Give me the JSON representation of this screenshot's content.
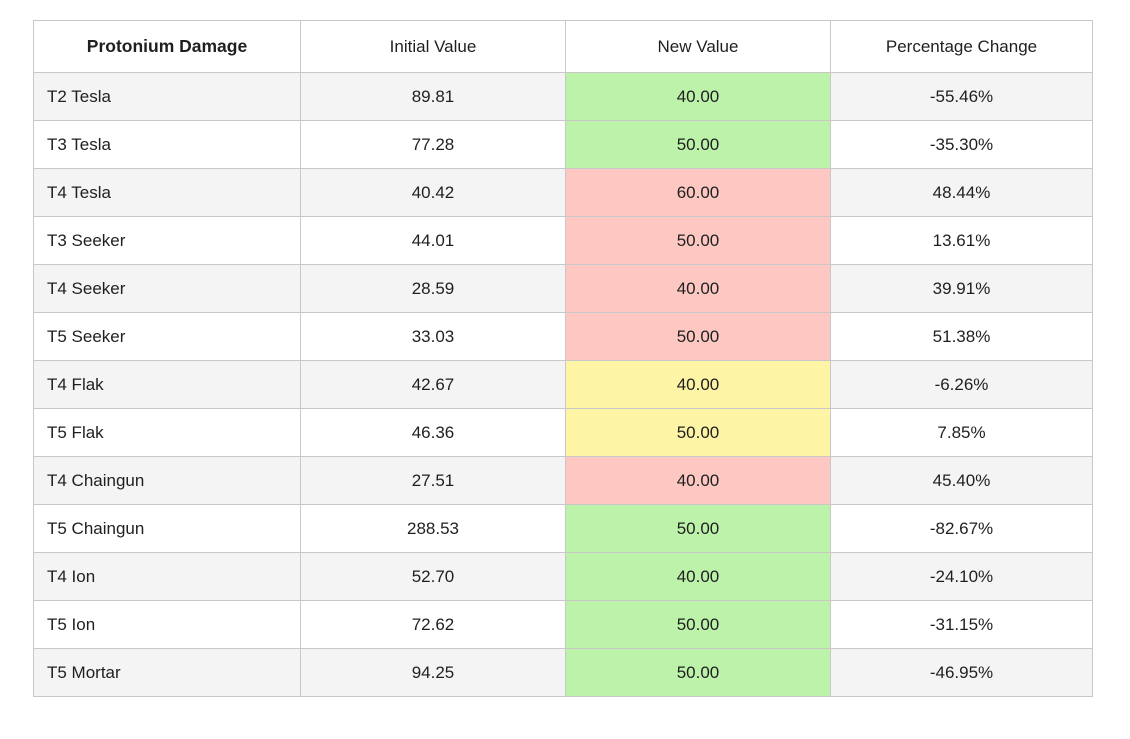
{
  "chart_data": {
    "type": "table",
    "title": "Protonium Damage",
    "columns": [
      "Protonium Damage",
      "Initial Value",
      "New Value",
      "Percentage Change"
    ],
    "rows": [
      {
        "label": "T2 Tesla",
        "initial": "89.81",
        "new_value": "40.00",
        "highlight": "green",
        "change": "-55.46%"
      },
      {
        "label": "T3 Tesla",
        "initial": "77.28",
        "new_value": "50.00",
        "highlight": "green",
        "change": "-35.30%"
      },
      {
        "label": "T4 Tesla",
        "initial": "40.42",
        "new_value": "60.00",
        "highlight": "red",
        "change": "48.44%"
      },
      {
        "label": "T3 Seeker",
        "initial": "44.01",
        "new_value": "50.00",
        "highlight": "red",
        "change": "13.61%"
      },
      {
        "label": "T4 Seeker",
        "initial": "28.59",
        "new_value": "40.00",
        "highlight": "red",
        "change": "39.91%"
      },
      {
        "label": "T5 Seeker",
        "initial": "33.03",
        "new_value": "50.00",
        "highlight": "red",
        "change": "51.38%"
      },
      {
        "label": "T4 Flak",
        "initial": "42.67",
        "new_value": "40.00",
        "highlight": "yellow",
        "change": "-6.26%"
      },
      {
        "label": "T5 Flak",
        "initial": "46.36",
        "new_value": "50.00",
        "highlight": "yellow",
        "change": "7.85%"
      },
      {
        "label": "T4 Chaingun",
        "initial": "27.51",
        "new_value": "40.00",
        "highlight": "red",
        "change": "45.40%"
      },
      {
        "label": "T5 Chaingun",
        "initial": "288.53",
        "new_value": "50.00",
        "highlight": "green",
        "change": "-82.67%"
      },
      {
        "label": "T4 Ion",
        "initial": "52.70",
        "new_value": "40.00",
        "highlight": "green",
        "change": "-24.10%"
      },
      {
        "label": "T5 Ion",
        "initial": "72.62",
        "new_value": "50.00",
        "highlight": "green",
        "change": "-31.15%"
      },
      {
        "label": "T5 Mortar",
        "initial": "94.25",
        "new_value": "50.00",
        "highlight": "green",
        "change": "-46.95%"
      }
    ]
  },
  "colors": {
    "green": "#bdf2aa",
    "red": "#fdc8c2",
    "yellow": "#fdf4a5",
    "row_alt": "#f4f4f4",
    "border": "#c8c8c8"
  }
}
